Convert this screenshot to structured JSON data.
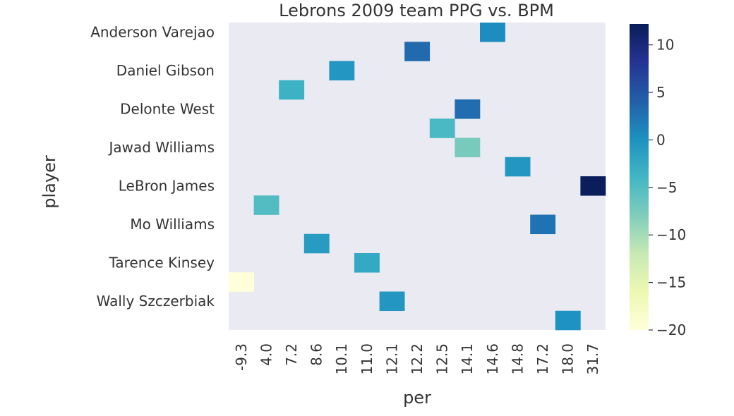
{
  "chart_data": {
    "type": "heatmap",
    "title": "Lebrons 2009 team PPG vs. BPM",
    "xlabel": "per",
    "ylabel": "player",
    "x_categories": [
      "-9.3",
      "4.0",
      "7.2",
      "8.6",
      "10.1",
      "11.0",
      "12.1",
      "12.2",
      "12.5",
      "14.1",
      "14.6",
      "14.8",
      "17.2",
      "18.0",
      "31.7"
    ],
    "y_rows": [
      "Anderson Varejao",
      "",
      "Daniel Gibson",
      "",
      "Delonte West",
      "",
      "Jawad Williams",
      "",
      "LeBron James",
      "",
      "Mo Williams",
      "",
      "Tarence Kinsey",
      "",
      "Wally Szczerbiak",
      ""
    ],
    "cells": [
      {
        "row": 0,
        "col": 10,
        "value": 0.5
      },
      {
        "row": 1,
        "col": 7,
        "value": 3.2
      },
      {
        "row": 2,
        "col": 4,
        "value": -0.5
      },
      {
        "row": 3,
        "col": 2,
        "value": -3.5
      },
      {
        "row": 4,
        "col": 9,
        "value": 3.0
      },
      {
        "row": 5,
        "col": 8,
        "value": -4.5
      },
      {
        "row": 6,
        "col": 9,
        "value": -7.5
      },
      {
        "row": 7,
        "col": 11,
        "value": -0.5
      },
      {
        "row": 8,
        "col": 14,
        "value": 12.0
      },
      {
        "row": 9,
        "col": 1,
        "value": -5.0
      },
      {
        "row": 10,
        "col": 12,
        "value": 2.5
      },
      {
        "row": 11,
        "col": 3,
        "value": -1.0
      },
      {
        "row": 12,
        "col": 5,
        "value": -2.5
      },
      {
        "row": 13,
        "col": 0,
        "value": -20.0
      },
      {
        "row": 14,
        "col": 6,
        "value": -0.5
      },
      {
        "row": 15,
        "col": 13,
        "value": 0.0
      }
    ],
    "colorbar": {
      "min": -20,
      "max": 12.2,
      "ticks": [
        10,
        5,
        0,
        -5,
        -10,
        -15,
        -20
      ],
      "tick_labels": [
        "10",
        "5",
        "0",
        "−5",
        "−10",
        "−15",
        "−20"
      ],
      "colormap": "YlGnBu"
    },
    "background_color": "#eaeaf2",
    "grid": false
  }
}
